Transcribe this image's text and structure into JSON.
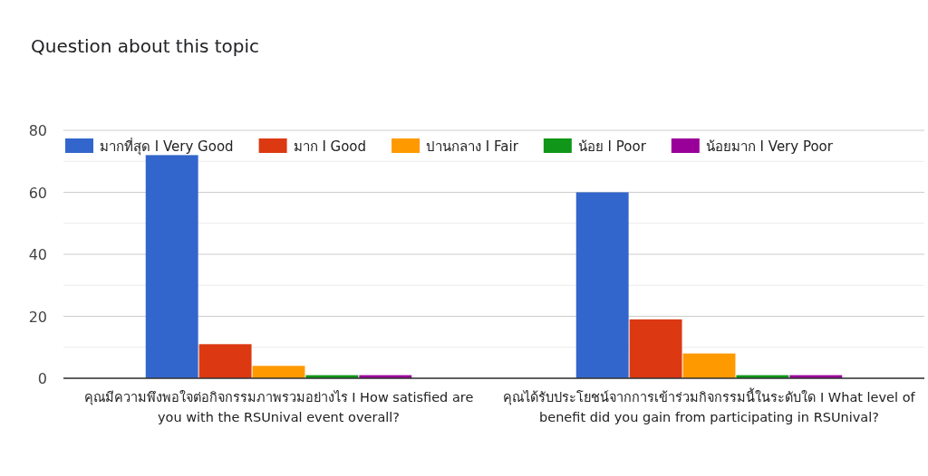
{
  "chart_data": {
    "type": "bar",
    "title": "Question about this topic",
    "categories": [
      "คุณมีความพึงพอใจต่อกิจกรรมภาพรวมอย่างไร I How satisfied are you with the RSUnival event overall?",
      "คุณได้รับประโยชน์จากการเข้าร่วมกิจกรรมนี้ในระดับใด I What level of benefit did you gain from participating in RSUnival?"
    ],
    "series": [
      {
        "name": "มากที่สุด I Very Good",
        "color": "#3366cc",
        "values": [
          72,
          60
        ]
      },
      {
        "name": "มาก I Good",
        "color": "#dc3912",
        "values": [
          11,
          19
        ]
      },
      {
        "name": "ปานกลาง I Fair",
        "color": "#ff9900",
        "values": [
          4,
          8
        ]
      },
      {
        "name": "น้อย I Poor",
        "color": "#109618",
        "values": [
          1,
          1
        ]
      },
      {
        "name": "น้อยมาก I Very Poor",
        "color": "#990099",
        "values": [
          1,
          1
        ]
      }
    ],
    "ylim": [
      0,
      80
    ],
    "yticks": [
      0,
      20,
      40,
      60,
      80
    ],
    "grid": true,
    "legend": "top"
  }
}
